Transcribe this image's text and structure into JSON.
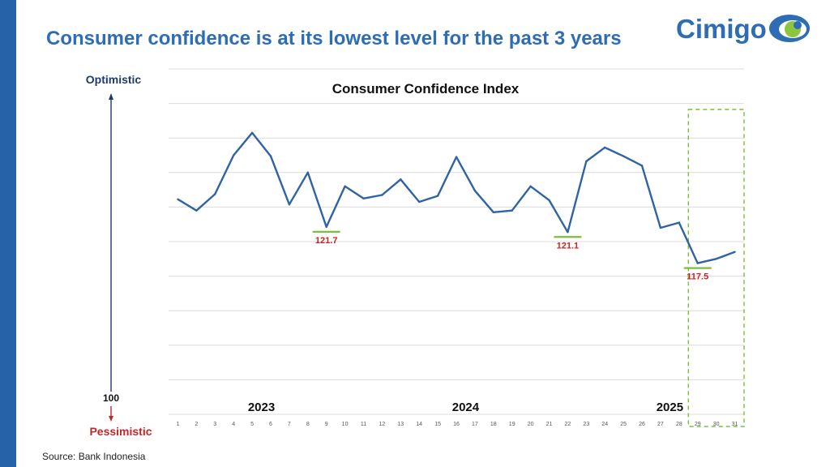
{
  "header": {
    "title": "Consumer confidence is at its lowest level for the past 3 years",
    "logo_text": "Cimigo"
  },
  "footer": {
    "source": "Source: Bank Indonesia"
  },
  "colors": {
    "side_bar": "#2562a8",
    "title": "#2e6db3",
    "line": "#2f63a3",
    "optimistic": "#1f3a6e",
    "pessimistic": "#c0282a",
    "highlight": "#7bbf3c",
    "low_label": "#cc2222"
  },
  "chart_data": {
    "type": "line",
    "title": "Consumer Confidence Index",
    "xlabel": "",
    "ylabel": "",
    "ylim": [
      100,
      140
    ],
    "y_top_label": "Optimistic",
    "y_bottom_label": "Pessimistic",
    "y_base_label": "100",
    "grid": true,
    "x": [
      1,
      2,
      3,
      4,
      5,
      6,
      7,
      8,
      9,
      10,
      11,
      12,
      13,
      14,
      15,
      16,
      17,
      18,
      19,
      20,
      21,
      22,
      23,
      24,
      25,
      26,
      27,
      28,
      29,
      30,
      31
    ],
    "categories": [
      "1",
      "2",
      "3",
      "4",
      "5",
      "6",
      "7",
      "8",
      "9",
      "10",
      "11",
      "12",
      "13",
      "14",
      "15",
      "16",
      "17",
      "18",
      "19",
      "20",
      "21",
      "22",
      "23",
      "24",
      "25",
      "26",
      "27",
      "28",
      "29",
      "30",
      "31"
    ],
    "series": [
      {
        "name": "Consumer Confidence Index",
        "values": [
          124.9,
          123.6,
          125.5,
          130.0,
          132.6,
          129.9,
          124.3,
          128.0,
          121.7,
          126.4,
          125.0,
          125.4,
          127.2,
          124.6,
          125.3,
          129.8,
          125.9,
          123.4,
          123.6,
          126.4,
          124.8,
          121.1,
          129.3,
          130.9,
          129.9,
          128.8,
          121.6,
          122.2,
          117.5,
          118.0,
          118.8
        ]
      }
    ],
    "year_labels": [
      {
        "label": "2023",
        "at": 5.5
      },
      {
        "label": "2024",
        "at": 16.5
      },
      {
        "label": "2025",
        "at": 27.5
      }
    ],
    "annotations": [
      {
        "x": 9,
        "text": "121.7"
      },
      {
        "x": 22,
        "text": "121.1"
      },
      {
        "x": 29,
        "text": "117.5"
      }
    ],
    "highlight_range": [
      28.5,
      31.5
    ]
  }
}
